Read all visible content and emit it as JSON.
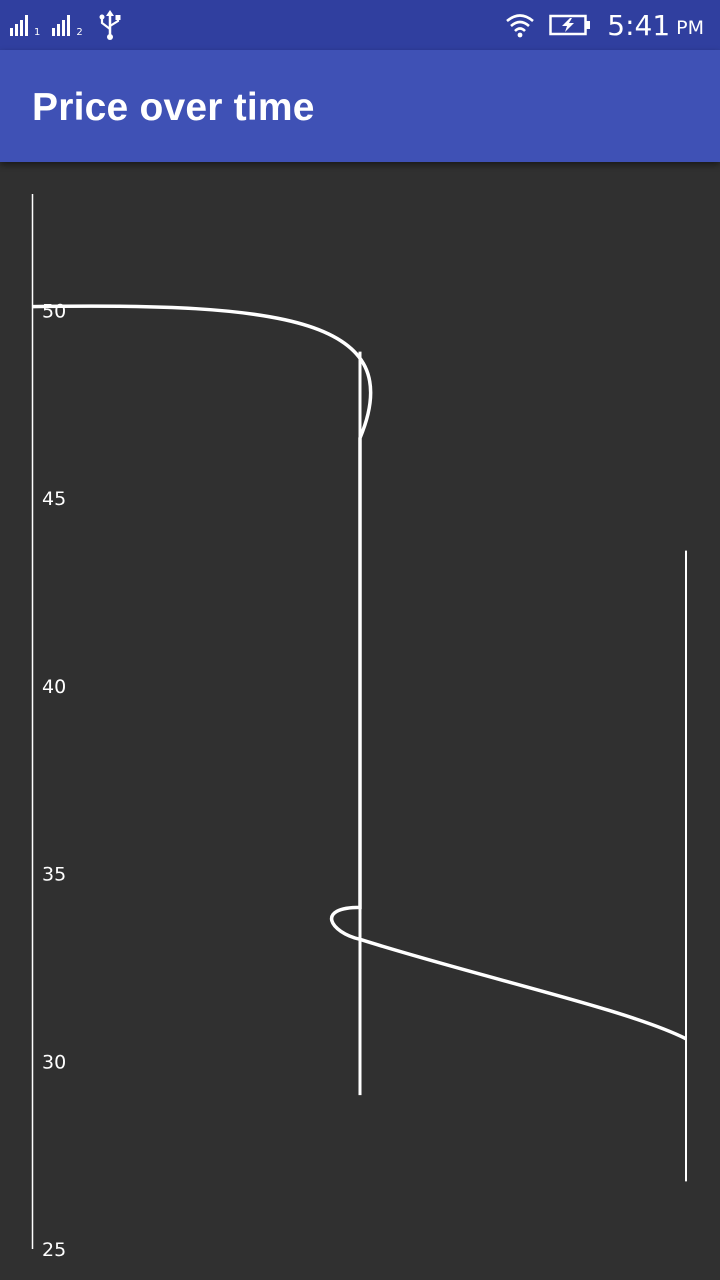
{
  "status_bar": {
    "time": "5:41",
    "ampm": "PM",
    "sim1_label": "1",
    "sim2_label": "2",
    "icons": [
      "signal-sim1-icon",
      "signal-sim2-icon",
      "usb-icon",
      "wifi-icon",
      "battery-charging-icon"
    ]
  },
  "app_bar": {
    "title": "Price over time",
    "color": "#3f51b5"
  },
  "chart_data": {
    "type": "line",
    "title": "",
    "xlabel": "",
    "ylabel": "",
    "ylim": [
      25,
      53.1
    ],
    "yticks": [
      50,
      45,
      40,
      35,
      30,
      25
    ],
    "grid": false,
    "line_color": "#ffffff",
    "series": [
      {
        "values": [
          {
            "x": 0,
            "y": 50.1
          },
          {
            "x": 1,
            "y": 46.6
          },
          {
            "x": 1,
            "y": 34.1
          },
          {
            "x": 2,
            "y": 30.6
          }
        ]
      }
    ],
    "error_bars": [
      {
        "x": 1,
        "low": 29.1,
        "high": 48.9
      },
      {
        "x": 2,
        "low": 26.8,
        "high": 43.6
      }
    ]
  }
}
